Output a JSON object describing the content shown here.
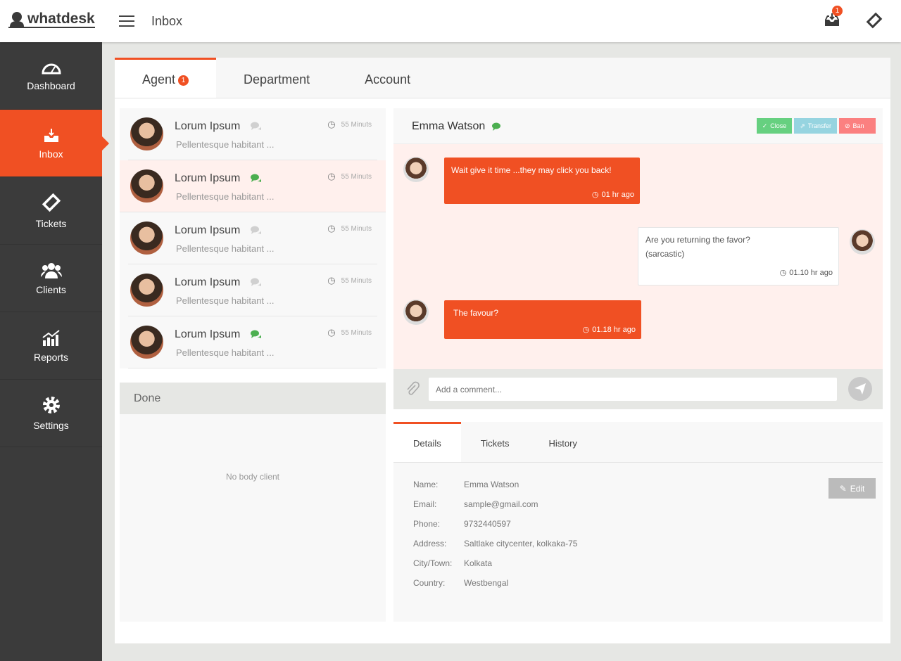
{
  "app": {
    "logo": "whatdesk",
    "title": "Inbox",
    "notification_count": "1"
  },
  "colors": {
    "accent": "#f05023",
    "sidebar": "#3b3b3b",
    "close": "#66d080",
    "transfer": "#96d4e0",
    "ban": "#fb8080",
    "online": "#4caf50"
  },
  "sidebar": {
    "items": [
      {
        "label": "Dashboard",
        "icon": "dashboard-icon"
      },
      {
        "label": "Inbox",
        "icon": "inbox-icon",
        "active": true
      },
      {
        "label": "Tickets",
        "icon": "ticket-icon"
      },
      {
        "label": "Clients",
        "icon": "users-icon"
      },
      {
        "label": "Reports",
        "icon": "chart-icon"
      },
      {
        "label": "Settings",
        "icon": "gear-icon"
      }
    ]
  },
  "tabs": [
    {
      "label": "Agent",
      "badge": "1"
    },
    {
      "label": "Department"
    },
    {
      "label": "Account"
    }
  ],
  "conversations": [
    {
      "name": "Lorum Ipsum",
      "preview": "Pellentesque habitant ...",
      "time": "55 Minuts",
      "chat_active": false
    },
    {
      "name": "Lorum Ipsum",
      "preview": "Pellentesque habitant ...",
      "time": "55 Minuts",
      "chat_active": true,
      "selected": true
    },
    {
      "name": "Lorum Ipsum",
      "preview": "Pellentesque habitant ...",
      "time": "55 Minuts",
      "chat_active": false
    },
    {
      "name": "Lorum Ipsum",
      "preview": "Pellentesque habitant ...",
      "time": "55 Minuts",
      "chat_active": false
    },
    {
      "name": "Lorum Ipsum",
      "preview": "Pellentesque habitant ...",
      "time": "55 Minuts",
      "chat_active": true
    }
  ],
  "done": {
    "title": "Done",
    "empty": "No body client"
  },
  "chat": {
    "name": "Emma Watson",
    "actions": {
      "close": "Close",
      "transfer": "Transfer",
      "ban": "Ban"
    },
    "messages": [
      {
        "text": "Wait give it time ...they may click you back!",
        "time": "01 hr ago"
      },
      {
        "text": "Are you returning the favor?",
        "text2": "(sarcastic)",
        "time": "01.10 hr ago"
      },
      {
        "text": "The favour?",
        "time": "01.18 hr ago"
      }
    ],
    "placeholder": "Add a comment..."
  },
  "details": {
    "tabs": [
      "Details",
      "Tickets",
      "History"
    ],
    "edit": "Edit",
    "fields": [
      {
        "label": "Name:",
        "value": "Emma Watson"
      },
      {
        "label": "Email:",
        "value": "sample@gmail.com"
      },
      {
        "label": "Phone:",
        "value": "9732440597"
      },
      {
        "label": "Address:",
        "value": "Saltlake citycenter, kolkaka-75"
      },
      {
        "label": "City/Town:",
        "value": "Kolkata"
      },
      {
        "label": "Country:",
        "value": "Westbengal"
      }
    ]
  }
}
